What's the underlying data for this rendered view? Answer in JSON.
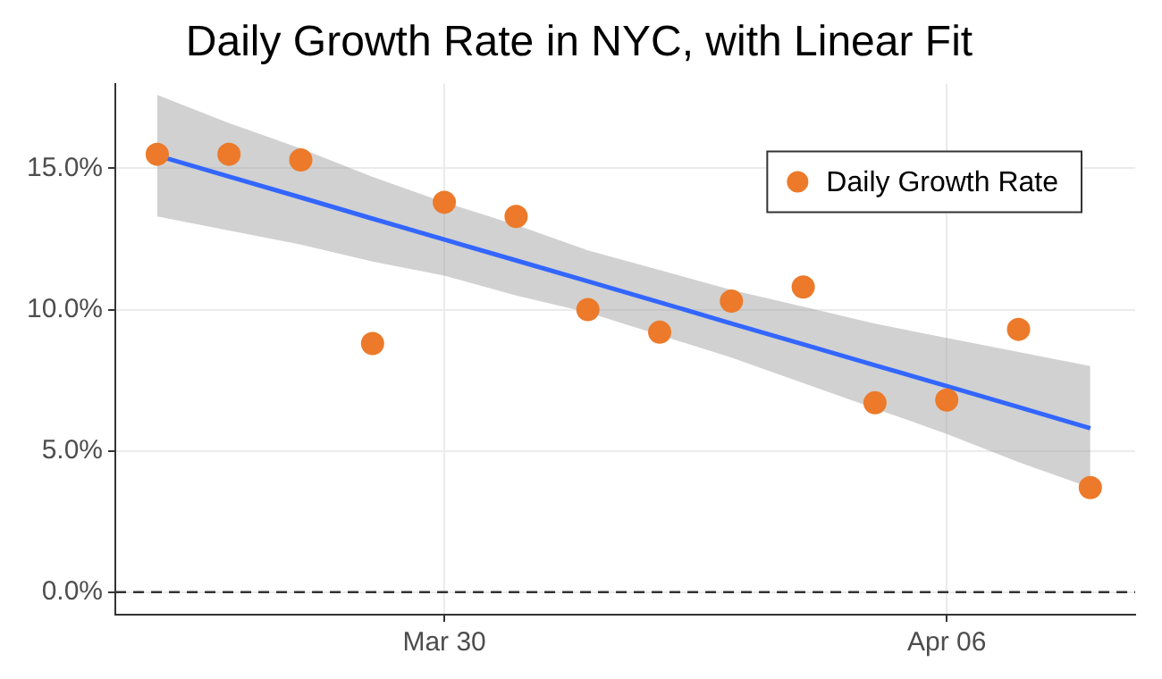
{
  "chart_data": {
    "type": "scatter",
    "title": "Daily Growth Rate in NYC, with Linear Fit",
    "x": [
      "--03-26",
      "--03-27",
      "--03-28",
      "--03-29",
      "--03-30",
      "--03-31",
      "--04-01",
      "--04-02",
      "--04-03",
      "--04-04",
      "--04-05",
      "--04-06",
      "--04-07",
      "--04-08"
    ],
    "series": [
      {
        "name": "Daily Growth Rate",
        "color": "#ec7a2a",
        "marker": "circle",
        "values": [
          15.5,
          15.5,
          15.3,
          8.8,
          13.8,
          13.3,
          10.0,
          9.2,
          10.3,
          10.8,
          6.7,
          6.8,
          9.3,
          3.7
        ]
      },
      {
        "type": "line",
        "color": "#3366ff",
        "marker": "none",
        "values": [
          15.45,
          14.71,
          13.97,
          13.22,
          12.48,
          11.74,
          11.0,
          10.26,
          9.51,
          8.77,
          8.03,
          7.29,
          6.55,
          5.8
        ],
        "lower": [
          13.3,
          12.8,
          12.3,
          11.7,
          11.2,
          10.5,
          9.9,
          9.1,
          8.3,
          7.4,
          6.5,
          5.6,
          4.6,
          3.7
        ],
        "upper": [
          17.6,
          16.6,
          15.7,
          14.7,
          13.8,
          13.0,
          12.1,
          11.4,
          10.7,
          10.1,
          9.5,
          9.0,
          8.5,
          8.0
        ]
      }
    ],
    "xlim": [
      "--03-25T10:00",
      "--04-08T15:00"
    ],
    "xticks": [
      {
        "value": "--03-30",
        "label": "Mar 30"
      },
      {
        "value": "--04-06",
        "label": "Apr 06"
      }
    ],
    "ylim": [
      -0.8,
      18
    ],
    "yticks": [
      {
        "value": 0,
        "label": "0.0%"
      },
      {
        "value": 5,
        "label": "5.0%"
      },
      {
        "value": 10,
        "label": "10.0%"
      },
      {
        "value": 15,
        "label": "15.0%"
      }
    ],
    "ref_lines": [
      {
        "axis": "y",
        "value": 0,
        "color": "#333333",
        "line_style": "dashed"
      }
    ],
    "grid": true,
    "legend": "top right"
  }
}
